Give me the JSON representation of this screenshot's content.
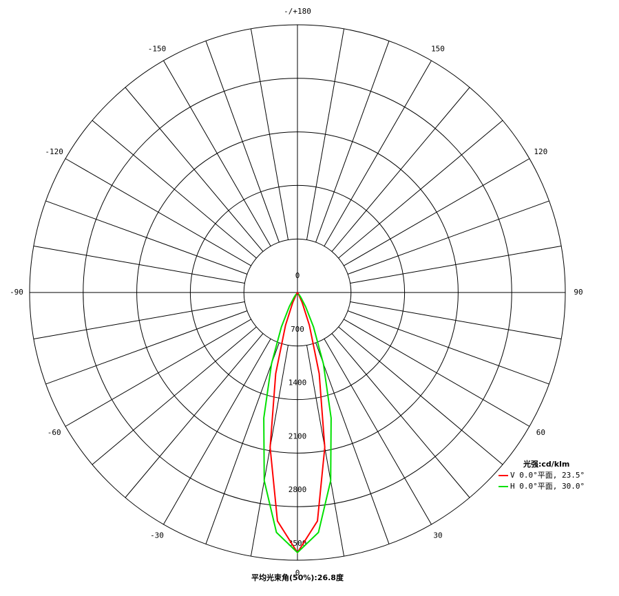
{
  "chart_data": {
    "type": "polar",
    "rlim": [
      0,
      3500
    ],
    "rticks": [
      0,
      700,
      1400,
      2100,
      2800,
      3500
    ],
    "angle_ticks": [
      0,
      30,
      60,
      90,
      120,
      150,
      {
        "value": 180,
        "label": "-/+180"
      },
      -150,
      -120,
      -90,
      -60,
      -30
    ],
    "x": [
      -40,
      -35,
      -30,
      -25,
      -20,
      -15,
      -10,
      -5,
      0,
      5,
      10,
      15,
      20,
      25,
      30,
      35,
      40
    ],
    "series": [
      {
        "name": "V 0.0°平面, 23.5°",
        "color": "#ff0000",
        "values": [
          0,
          7,
          37,
          148,
          456,
          1098,
          2056,
          2999,
          3400,
          2999,
          2056,
          1098,
          456,
          148,
          37,
          7,
          0
        ]
      },
      {
        "name": "H 0.0°平面, 30.0°",
        "color": "#00e000",
        "values": [
          25,
          78,
          213,
          496,
          990,
          1700,
          2499,
          3149,
          3400,
          3149,
          2499,
          1700,
          990,
          496,
          213,
          78,
          25
        ]
      }
    ],
    "legend_title": "光强:cd/klm",
    "footer": "平均光束角(50%):26.8度"
  }
}
